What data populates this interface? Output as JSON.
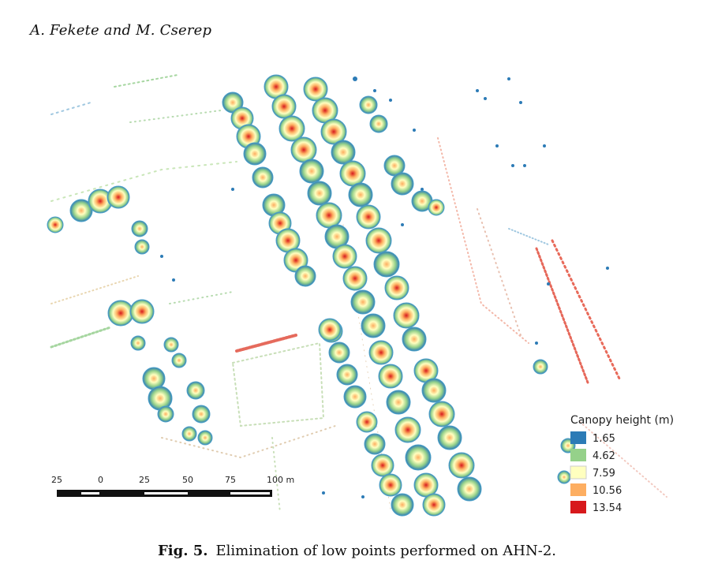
{
  "header": {
    "authors": "A. Fekete and M. Cserep"
  },
  "figure": {
    "label": "Fig. 5.",
    "caption": "Elimination of low points performed on AHN-2.",
    "legend": {
      "title": "Canopy height (m)",
      "entries": [
        {
          "value": "1.65",
          "color": "#2c7bb6"
        },
        {
          "value": "4.62",
          "color": "#95d18a"
        },
        {
          "value": "7.59",
          "color": "#ffffbf"
        },
        {
          "value": "10.56",
          "color": "#fdae61"
        },
        {
          "value": "13.54",
          "color": "#d7191c"
        }
      ]
    },
    "scale_bar": {
      "labels": [
        "25",
        "0",
        "25",
        "50",
        "75",
        "100 m"
      ]
    }
  }
}
